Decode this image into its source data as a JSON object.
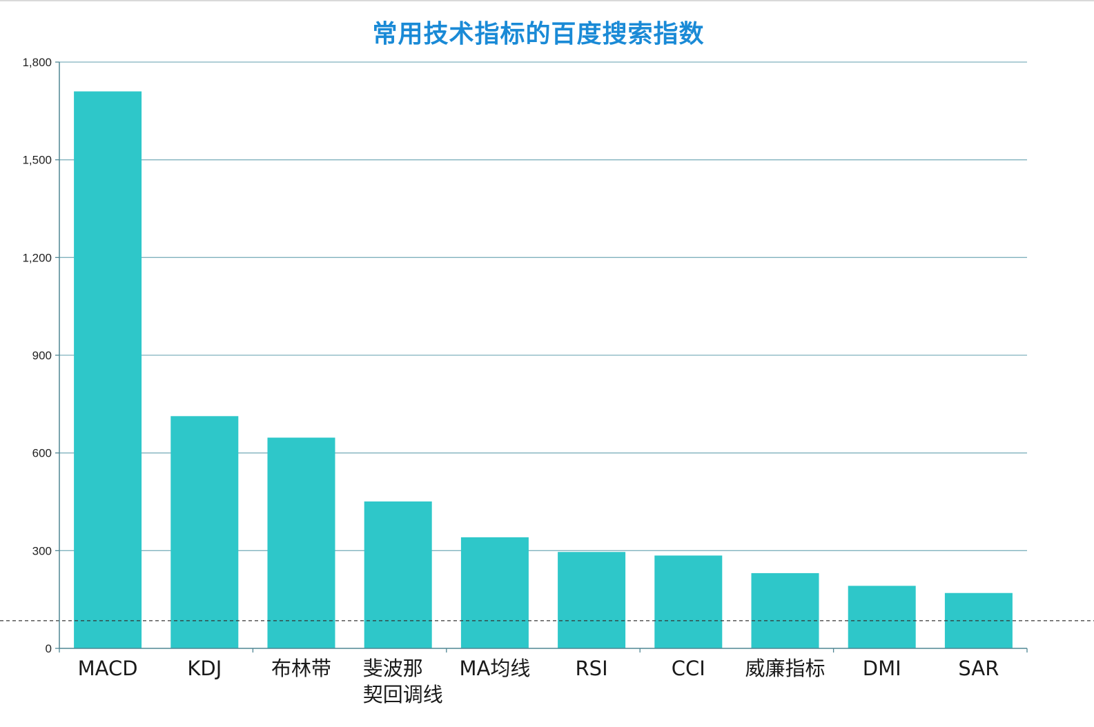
{
  "title": "常用技术指标的百度搜索指数",
  "colors": {
    "bar": "#2ec7c9",
    "grid": "#7fb1bd",
    "axis": "#4f8593",
    "title": "#1a8ad6",
    "reference_line": "#333333"
  },
  "chart_data": {
    "type": "bar",
    "title": "常用技术指标的百度搜索指数",
    "xlabel": "",
    "ylabel": "",
    "ylim": [
      0,
      1800
    ],
    "yticks": [
      0,
      300,
      600,
      900,
      1200,
      1500,
      1800
    ],
    "ytick_labels": [
      "0",
      "300",
      "600",
      "900",
      "1,200",
      "1,500",
      "1,800"
    ],
    "grid": true,
    "categories": [
      "MACD",
      "KDJ",
      "布林带",
      "斐波那契回调线",
      "MA均线",
      "RSI",
      "CCI",
      "威廉指标",
      "DMI",
      "SAR"
    ],
    "category_lines": [
      [
        "MACD"
      ],
      [
        "KDJ"
      ],
      [
        "布林带"
      ],
      [
        "斐波那",
        "契回调线"
      ],
      [
        "MA均线"
      ],
      [
        "RSI"
      ],
      [
        "CCI"
      ],
      [
        "威廉指标"
      ],
      [
        "DMI"
      ],
      [
        "SAR"
      ]
    ],
    "values": [
      1710,
      713,
      647,
      451,
      341,
      296,
      285,
      231,
      192,
      170
    ],
    "reference_line": 85
  }
}
